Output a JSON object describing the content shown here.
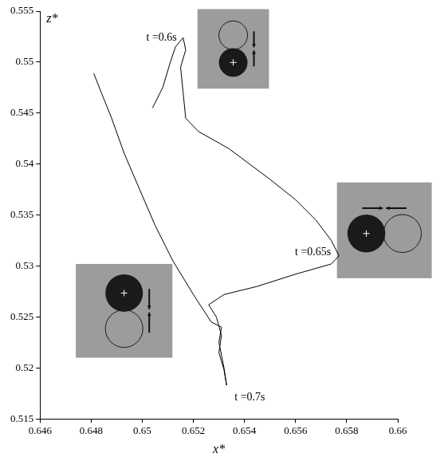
{
  "chart_data": {
    "type": "line",
    "x_label": "x*",
    "y_label": "z*",
    "color": "#000000",
    "marker": "none",
    "grid": false,
    "x": [
      0.6504,
      0.6508,
      0.6511,
      0.6513,
      0.6516,
      0.6517,
      0.6515,
      0.6516,
      0.6517,
      0.6522,
      0.6534,
      0.6542,
      0.655,
      0.656,
      0.6568,
      0.6574,
      0.6577,
      0.6574,
      0.656,
      0.6545,
      0.6532,
      0.6526,
      0.6529,
      0.6531,
      0.653,
      0.6532,
      0.6533,
      0.6532,
      0.653,
      0.6531,
      0.6527,
      0.652,
      0.6512,
      0.6505,
      0.6499,
      0.6493,
      0.6488,
      0.6484,
      0.6481
    ],
    "values": [
      0.5455,
      0.5475,
      0.55,
      0.5515,
      0.5524,
      0.5512,
      0.5495,
      0.547,
      0.5445,
      0.5432,
      0.5415,
      0.54,
      0.5385,
      0.5365,
      0.5345,
      0.5325,
      0.531,
      0.5302,
      0.5292,
      0.528,
      0.5272,
      0.5262,
      0.525,
      0.5232,
      0.5215,
      0.5198,
      0.5183,
      0.52,
      0.5225,
      0.524,
      0.5245,
      0.5272,
      0.5305,
      0.534,
      0.5375,
      0.541,
      0.5445,
      0.547,
      0.5489
    ],
    "xlim": [
      0.646,
      0.66
    ],
    "xticks": [
      0.646,
      0.648,
      0.65,
      0.652,
      0.654,
      0.656,
      0.658,
      0.66
    ],
    "ylim": [
      0.515,
      0.555
    ],
    "yticks": [
      0.515,
      0.52,
      0.525,
      0.53,
      0.535,
      0.54,
      0.545,
      0.55,
      0.555
    ],
    "annotations": [
      {
        "text": "t =0.6s",
        "x": 0.6516,
        "y": 0.5524
      },
      {
        "text": "t =0.65s",
        "x": 0.6577,
        "y": 0.531
      },
      {
        "text": "t =0.7s",
        "x": 0.6533,
        "y": 0.5183
      }
    ]
  }
}
